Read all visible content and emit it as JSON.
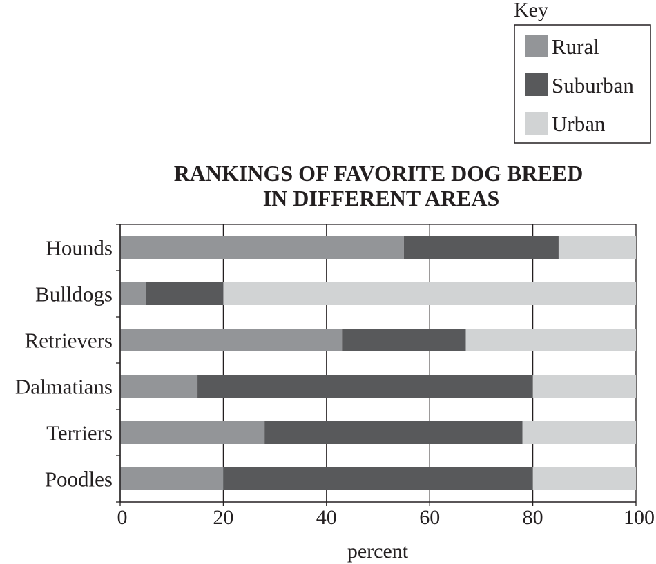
{
  "chart_data": {
    "type": "bar",
    "orientation": "horizontal",
    "stacked": true,
    "title_lines": [
      "RANKINGS OF FAVORITE DOG BREED",
      "IN DIFFERENT AREAS"
    ],
    "xlabel": "percent",
    "ylabel": "",
    "xlim": [
      0,
      100
    ],
    "xticks": [
      0,
      20,
      40,
      60,
      80,
      100
    ],
    "grid": true,
    "legend_title": "Key",
    "legend_position": "top-right",
    "categories": [
      "Hounds",
      "Bulldogs",
      "Retrievers",
      "Dalmatians",
      "Terriers",
      "Poodles"
    ],
    "series": [
      {
        "name": "Rural",
        "color": "#939598",
        "values": [
          55,
          5,
          43,
          15,
          28,
          20
        ]
      },
      {
        "name": "Suburban",
        "color": "#58595b",
        "values": [
          30,
          15,
          24,
          65,
          50,
          60
        ]
      },
      {
        "name": "Urban",
        "color": "#d1d3d4",
        "values": [
          15,
          80,
          33,
          20,
          22,
          20
        ]
      }
    ]
  }
}
